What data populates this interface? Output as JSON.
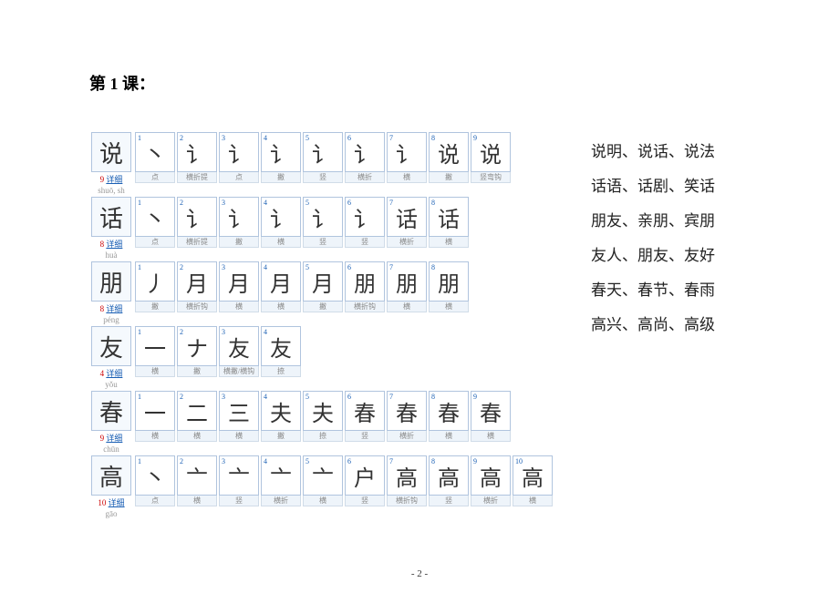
{
  "title": "第 1 课：",
  "page_number": "- 2 -",
  "detail_label": "详细",
  "characters": [
    {
      "char": "说",
      "pinyin": "shuō, sh",
      "count": 9,
      "strokes": [
        "点",
        "横折提",
        "点",
        "撇",
        "竖",
        "横折",
        "横",
        "撇",
        "竖弯钩"
      ]
    },
    {
      "char": "话",
      "pinyin": "huà",
      "count": 8,
      "strokes": [
        "点",
        "横折提",
        "撇",
        "横",
        "竖",
        "竖",
        "横折",
        "横"
      ]
    },
    {
      "char": "朋",
      "pinyin": "péng",
      "count": 8,
      "strokes": [
        "撇",
        "横折钩",
        "横",
        "横",
        "撇",
        "横折钩",
        "横",
        "横"
      ]
    },
    {
      "char": "友",
      "pinyin": "yǒu",
      "count": 4,
      "strokes": [
        "横",
        "撇",
        "横撇/横钩",
        "捺"
      ]
    },
    {
      "char": "春",
      "pinyin": "chūn",
      "count": 9,
      "strokes": [
        "横",
        "横",
        "横",
        "撇",
        "捺",
        "竖",
        "横折",
        "横",
        "横"
      ]
    },
    {
      "char": "高",
      "pinyin": "gāo",
      "count": 10,
      "strokes": [
        "点",
        "横",
        "竖",
        "横折",
        "横",
        "竖",
        "横折钩",
        "竖",
        "横折",
        "横"
      ]
    }
  ],
  "stroke_chars": {
    "说": [
      "丶",
      "讠",
      "讠",
      "讠",
      "讠",
      "讠",
      "讠",
      "说",
      "说"
    ],
    "话": [
      "丶",
      "讠",
      "讠",
      "讠",
      "讠",
      "讠",
      "话",
      "话"
    ],
    "朋": [
      "丿",
      "月",
      "月",
      "月",
      "月",
      "朋",
      "朋",
      "朋"
    ],
    "友": [
      "一",
      "ナ",
      "友",
      "友"
    ],
    "春": [
      "一",
      "二",
      "三",
      "夫",
      "夫",
      "春",
      "春",
      "春",
      "春"
    ],
    "高": [
      "丶",
      "亠",
      "亠",
      "亠",
      "亠",
      "户",
      "高",
      "高",
      "高",
      "高"
    ]
  },
  "vocab": [
    "说明、说话、说法",
    "话语、话剧、笑话",
    "朋友、亲朋、宾朋",
    "友人、朋友、友好",
    "春天、春节、春雨",
    "高兴、高尚、高级"
  ],
  "colors": {
    "border": "#b0c4de",
    "link": "#1a5fb4",
    "red": "#d00",
    "text": "#333",
    "pinyin": "#999",
    "label_bg": "#eef4fa"
  }
}
